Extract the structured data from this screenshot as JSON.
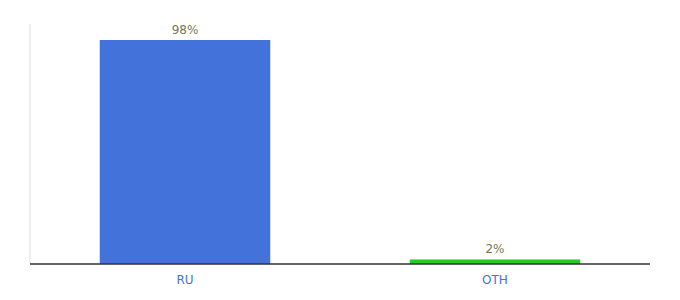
{
  "chart_data": {
    "type": "bar",
    "categories": [
      "RU",
      "OTH"
    ],
    "values": [
      98,
      2
    ],
    "value_labels": [
      "98%",
      "2%"
    ],
    "data_labels": true,
    "colors": [
      "#4472db",
      "#22cc22"
    ],
    "ylim": [
      0,
      105
    ],
    "tick_labels": "x",
    "grid": false
  }
}
